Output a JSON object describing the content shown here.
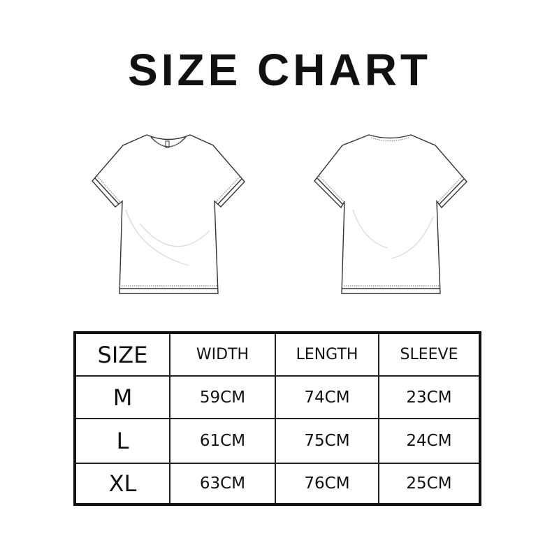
{
  "title": "SIZE CHART",
  "table": {
    "headers": [
      "SIZE",
      "WIDTH",
      "LENGTH",
      "SLEEVE"
    ],
    "rows": [
      {
        "size": "M",
        "width": "59CM",
        "length": "74CM",
        "sleeve": "23CM"
      },
      {
        "size": "L",
        "width": "61CM",
        "length": "75CM",
        "sleeve": "24CM"
      },
      {
        "size": "XL",
        "width": "63CM",
        "length": "76CM",
        "sleeve": "25CM"
      }
    ]
  },
  "illustrations": [
    "tshirt-front",
    "tshirt-back"
  ]
}
